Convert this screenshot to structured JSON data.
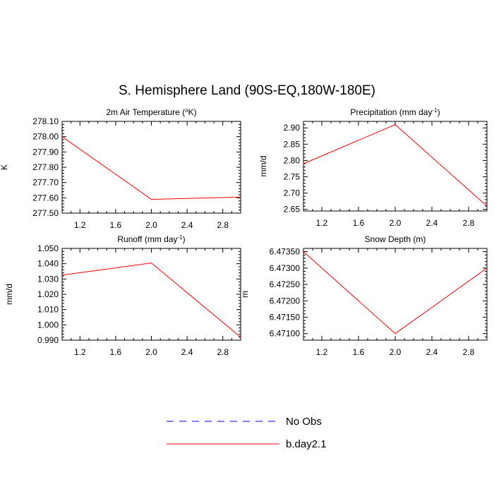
{
  "title": "S. Hemisphere Land (90S-EQ,180W-180E)",
  "colors": {
    "model": "#ff0000",
    "obs": "#0000ff",
    "axis": "#000000"
  },
  "legend": {
    "entries": [
      {
        "label": "No Obs",
        "style": "dashed",
        "color": "#0000ff"
      },
      {
        "label": "b.day2.1",
        "style": "solid",
        "color": "#ff0000"
      }
    ]
  },
  "chart_data": [
    {
      "type": "line",
      "title_main": "2m Air Temperature (",
      "title_sup": "o",
      "title_tail": "K)",
      "ylabel": "K",
      "xlim": [
        1.0,
        3.0
      ],
      "ylim": [
        277.5,
        278.1
      ],
      "x_ticks": [
        "1.2",
        "1.6",
        "2.0",
        "2.4",
        "2.8"
      ],
      "y_ticks": [
        "277.50",
        "277.60",
        "277.70",
        "277.80",
        "277.90",
        "278.00",
        "278.10"
      ],
      "series": [
        {
          "name": "b.day2.1",
          "x": [
            1,
            2,
            3
          ],
          "y": [
            278.0,
            277.59,
            277.605
          ]
        }
      ]
    },
    {
      "type": "line",
      "title_main": "Precipitation (mm day",
      "title_sup": "-1",
      "title_tail": ")",
      "ylabel": "mm/d",
      "xlim": [
        1.0,
        3.0
      ],
      "ylim": [
        2.645,
        2.92
      ],
      "x_ticks": [
        "1.2",
        "1.6",
        "2.0",
        "2.4",
        "2.8"
      ],
      "y_ticks": [
        "2.65",
        "2.70",
        "2.75",
        "2.80",
        "2.85",
        "2.90"
      ],
      "series": [
        {
          "name": "b.day2.1",
          "x": [
            1,
            2,
            3
          ],
          "y": [
            2.79,
            2.91,
            2.66
          ]
        }
      ]
    },
    {
      "type": "line",
      "title_main": "Runoff (mm day",
      "title_sup": "-1",
      "title_tail": ")",
      "ylabel": "mm/d",
      "xlim": [
        1.0,
        3.0
      ],
      "ylim": [
        0.99,
        1.05
      ],
      "x_ticks": [
        "1.2",
        "1.6",
        "2.0",
        "2.4",
        "2.8"
      ],
      "y_ticks": [
        "0.990",
        "1.000",
        "1.010",
        "1.020",
        "1.030",
        "1.040",
        "1.050"
      ],
      "series": [
        {
          "name": "b.day2.1",
          "x": [
            1,
            2,
            3
          ],
          "y": [
            1.0325,
            1.0405,
            0.992
          ]
        }
      ]
    },
    {
      "type": "line",
      "title_main": "Snow Depth (m)",
      "title_sup": "",
      "title_tail": "",
      "ylabel": "m",
      "xlim": [
        1.0,
        3.0
      ],
      "ylim": [
        6.4708,
        6.4736
      ],
      "x_ticks": [
        "1.2",
        "1.6",
        "2.0",
        "2.4",
        "2.8"
      ],
      "y_ticks": [
        "6.47100",
        "6.47150",
        "6.47200",
        "6.47250",
        "6.47300",
        "6.47350"
      ],
      "series": [
        {
          "name": "b.day2.1",
          "x": [
            1,
            2,
            3
          ],
          "y": [
            6.4735,
            6.471,
            6.473
          ]
        }
      ]
    }
  ]
}
